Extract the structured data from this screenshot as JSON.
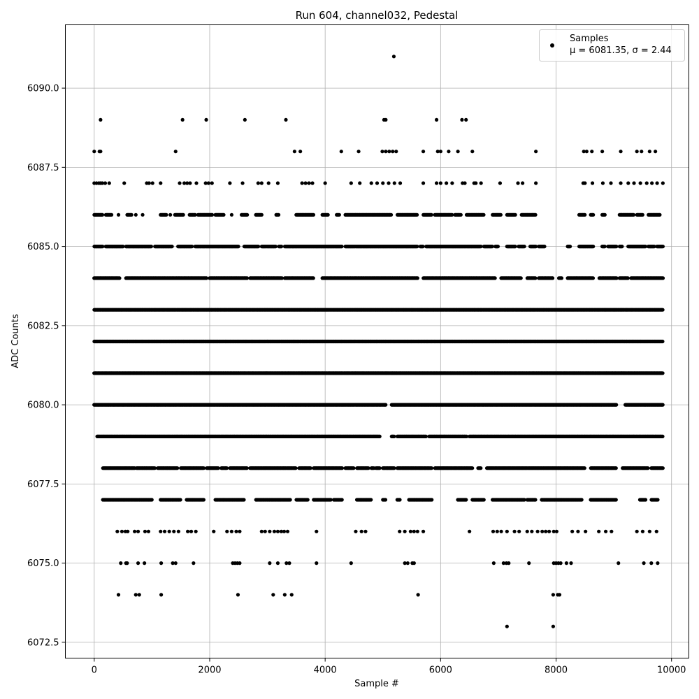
{
  "chart_data": {
    "type": "scatter",
    "title": "Run 604, channel032, Pedestal",
    "xlabel": "Sample #",
    "ylabel": "ADC Counts",
    "xlim": [
      -500,
      10300
    ],
    "ylim": [
      6072.0,
      6092.0
    ],
    "x_ticks": [
      0,
      2000,
      4000,
      6000,
      8000,
      10000
    ],
    "x_tick_labels": [
      "0",
      "2000",
      "4000",
      "6000",
      "8000",
      "10000"
    ],
    "y_ticks": [
      6072.5,
      6075.0,
      6077.5,
      6080.0,
      6082.5,
      6085.0,
      6087.5,
      6090.0
    ],
    "y_tick_labels": [
      "6072.5",
      "6075.0",
      "6077.5",
      "6080.0",
      "6082.5",
      "6085.0",
      "6087.5",
      "6090.0"
    ],
    "grid": true,
    "legend": {
      "placement": "top-right",
      "entries": [
        {
          "name": "Samples",
          "stats": "μ = 6081.35, σ = 2.44"
        }
      ]
    },
    "series": [
      {
        "name": "Samples",
        "color": "#000000",
        "x_range": [
          0,
          9850
        ],
        "levels": [
          {
            "y": 6073,
            "x": [
              7150,
              7950
            ]
          },
          {
            "y": 6074,
            "x": [
              420,
              720,
              780,
              1160,
              2490,
              3100,
              3300,
              3420,
              5610,
              7950,
              8030,
              8060
            ]
          },
          {
            "y": 6075,
            "x": [
              460,
              550,
              570,
              760,
              870,
              1160,
              1360,
              1410,
              1720,
              2400,
              2440,
              2480,
              2520,
              3040,
              3180,
              3330,
              3380,
              3850,
              4450,
              5380,
              5430,
              5510,
              5540,
              6920,
              7090,
              7140,
              7180,
              7530,
              7960,
              8000,
              8040,
              8080,
              8180,
              8260,
              9080,
              9520,
              9650,
              9760
            ]
          },
          {
            "y": 6076,
            "x": [
              400,
              480,
              540,
              580,
              700,
              760,
              880,
              940,
              1150,
              1220,
              1300,
              1380,
              1460,
              1620,
              1680,
              1760,
              2070,
              2300,
              2380,
              2460,
              2520,
              2900,
              2960,
              3040,
              3120,
              3180,
              3240,
              3290,
              3350,
              3850,
              4530,
              4630,
              4700,
              5290,
              5380,
              5480,
              5540,
              5600,
              5700,
              6500,
              6910,
              6980,
              7050,
              7150,
              7280,
              7360,
              7500,
              7580,
              7680,
              7760,
              7820,
              7880,
              7960,
              8010,
              8280,
              8380,
              8510,
              8740,
              8860,
              8960,
              9400,
              9500,
              9620,
              9740
            ]
          },
          {
            "y": 6077,
            "x_ranges": [
              [
                150,
                1000
              ],
              [
                1150,
                1500
              ],
              [
                1600,
                1900
              ],
              [
                2100,
                2600
              ],
              [
                2800,
                3400
              ],
              [
                3500,
                3700
              ],
              [
                3800,
                4100
              ],
              [
                4150,
                4300
              ],
              [
                4550,
                4800
              ],
              [
                5000,
                5050
              ],
              [
                5250,
                5300
              ],
              [
                5450,
                5850
              ],
              [
                6300,
                6450
              ],
              [
                6550,
                6750
              ],
              [
                6900,
                7450
              ],
              [
                7500,
                7650
              ],
              [
                7750,
                8450
              ],
              [
                8600,
                9050
              ],
              [
                9450,
                9550
              ],
              [
                9650,
                9760
              ]
            ]
          },
          {
            "y": 6078,
            "x_ranges": [
              [
                150,
                700
              ],
              [
                730,
                1050
              ],
              [
                1100,
                1450
              ],
              [
                1500,
                1900
              ],
              [
                1950,
                2150
              ],
              [
                2200,
                2300
              ],
              [
                2350,
                2650
              ],
              [
                2700,
                3500
              ],
              [
                3550,
                3750
              ],
              [
                3800,
                4300
              ],
              [
                4350,
                4500
              ],
              [
                4550,
                4750
              ],
              [
                4800,
                4850
              ],
              [
                4880,
                4950
              ],
              [
                5000,
                5200
              ],
              [
                5250,
                5850
              ],
              [
                5900,
                6550
              ],
              [
                6650,
                6700
              ],
              [
                6800,
                8500
              ],
              [
                8600,
                9050
              ],
              [
                9150,
                9600
              ],
              [
                9650,
                9850
              ]
            ]
          },
          {
            "y": 6079,
            "x_ranges": [
              [
                50,
                4950
              ],
              [
                5150,
                5200
              ],
              [
                5250,
                5750
              ],
              [
                5800,
                6450
              ],
              [
                6500,
                9850
              ]
            ]
          },
          {
            "y": 6080,
            "x_ranges": [
              [
                0,
                5050
              ],
              [
                5150,
                9050
              ],
              [
                9200,
                9850
              ]
            ]
          },
          {
            "y": 6081,
            "x_ranges": [
              [
                0,
                9850
              ]
            ]
          },
          {
            "y": 6082,
            "x_ranges": [
              [
                0,
                9850
              ]
            ]
          },
          {
            "y": 6083,
            "x_ranges": [
              [
                0,
                9850
              ]
            ]
          },
          {
            "y": 6084,
            "x_ranges": [
              [
                0,
                450
              ],
              [
                550,
                1950
              ],
              [
                2000,
                2650
              ],
              [
                2700,
                3250
              ],
              [
                3300,
                3800
              ],
              [
                3950,
                5600
              ],
              [
                5700,
                6950
              ],
              [
                7050,
                7400
              ],
              [
                7500,
                7650
              ],
              [
                7700,
                7950
              ],
              [
                8050,
                8100
              ],
              [
                8200,
                8650
              ],
              [
                8750,
                9050
              ],
              [
                9100,
                9250
              ],
              [
                9300,
                9850
              ]
            ]
          },
          {
            "y": 6085,
            "x_ranges": [
              [
                0,
                150
              ],
              [
                200,
                500
              ],
              [
                550,
                1000
              ],
              [
                1050,
                1350
              ],
              [
                1450,
                1700
              ],
              [
                1750,
                2500
              ],
              [
                2600,
                2850
              ],
              [
                2900,
                3150
              ],
              [
                3200,
                3250
              ],
              [
                3300,
                4300
              ],
              [
                4350,
                5600
              ],
              [
                5650,
                5700
              ],
              [
                5750,
                6700
              ],
              [
                6750,
                6900
              ],
              [
                6950,
                7000
              ],
              [
                7150,
                7300
              ],
              [
                7350,
                7450
              ],
              [
                7550,
                7650
              ],
              [
                7700,
                7800
              ],
              [
                8200,
                8250
              ],
              [
                8400,
                8650
              ],
              [
                8800,
                8850
              ],
              [
                8900,
                9050
              ],
              [
                9100,
                9150
              ],
              [
                9250,
                9550
              ],
              [
                9600,
                9700
              ],
              [
                9750,
                9850
              ]
            ]
          },
          {
            "y": 6086,
            "x_ranges": [
              [
                0,
                150
              ],
              [
                200,
                300
              ],
              [
                420,
                430
              ],
              [
                570,
                650
              ],
              [
                720,
                730
              ],
              [
                840,
                850
              ],
              [
                1150,
                1250
              ],
              [
                1320,
                1330
              ],
              [
                1400,
                1550
              ],
              [
                1650,
                1750
              ],
              [
                1800,
                2050
              ],
              [
                2100,
                2250
              ],
              [
                2380,
                2390
              ],
              [
                2550,
                2650
              ],
              [
                2800,
                2900
              ],
              [
                3150,
                3200
              ],
              [
                3500,
                3800
              ],
              [
                3950,
                4050
              ],
              [
                4200,
                4250
              ],
              [
                4350,
                5150
              ],
              [
                5250,
                5600
              ],
              [
                5700,
                5850
              ],
              [
                5900,
                6200
              ],
              [
                6250,
                6350
              ],
              [
                6450,
                6750
              ],
              [
                6900,
                7050
              ],
              [
                7150,
                7300
              ],
              [
                7400,
                7650
              ],
              [
                8400,
                8500
              ],
              [
                8600,
                8650
              ],
              [
                8800,
                8850
              ],
              [
                9100,
                9350
              ],
              [
                9400,
                9500
              ],
              [
                9600,
                9800
              ]
            ]
          }
        ],
        "sparse": [
          {
            "y": 6087,
            "x": [
              0,
              40,
              80,
              110,
              140,
              190,
              260,
              520,
              910,
              950,
              1010,
              1150,
              1480,
              1560,
              1610,
              1660,
              1770,
              1930,
              1980,
              2040,
              2350,
              2570,
              2840,
              2900,
              3020,
              3180,
              3600,
              3660,
              3720,
              3780,
              4000,
              4450,
              4600,
              4800,
              4900,
              5000,
              5100,
              5200,
              5300,
              5700,
              5930,
              6000,
              6100,
              6200,
              6380,
              6420,
              6580,
              6610,
              6700,
              7030,
              7340,
              7420,
              7650,
              8470,
              8500,
              8630,
              8810,
              8950,
              9120,
              9250,
              9350,
              9460,
              9570,
              9660,
              9750,
              9850
            ]
          },
          {
            "y": 6088,
            "x": [
              0,
              90,
              110,
              1410,
              3470,
              3570,
              4280,
              4580,
              4990,
              5050,
              5110,
              5170,
              5230,
              5700,
              5950,
              6000,
              6140,
              6300,
              6550,
              7650,
              8480,
              8530,
              8620,
              8800,
              9120,
              9400,
              9480,
              9620,
              9720
            ]
          },
          {
            "y": 6089,
            "x": [
              110,
              1530,
              1940,
              2610,
              3320,
              5020,
              5050,
              5930,
              6370,
              6440
            ]
          },
          {
            "y": 6091,
            "x": [
              5190
            ]
          }
        ]
      }
    ]
  }
}
